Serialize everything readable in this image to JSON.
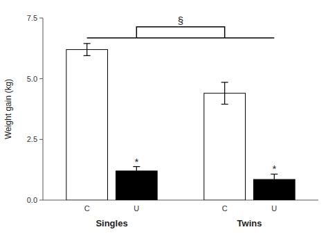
{
  "chart_data": {
    "type": "bar",
    "categories": [
      "Singles",
      "Twins"
    ],
    "series": [
      {
        "name": "C",
        "color": "white",
        "values": [
          6.2,
          4.4
        ],
        "errors": [
          0.25,
          0.45
        ]
      },
      {
        "name": "U",
        "color": "black",
        "values": [
          1.2,
          0.85
        ],
        "errors": [
          0.18,
          0.22
        ]
      }
    ],
    "ylabel": "Weight gain (kg)",
    "ylim": [
      0,
      7.5
    ],
    "yticks": [
      {
        "value": 0.0,
        "label": "0.0"
      },
      2.5,
      {
        "value": 5.0,
        "label": "5.0"
      },
      7.5
    ],
    "grid": false,
    "annotations": [
      {
        "text": "*",
        "category": "Singles",
        "series": "U"
      },
      {
        "text": "*",
        "category": "Twins",
        "series": "U"
      },
      {
        "from": [
          "Singles",
          "C"
        ],
        "to": [
          "Twins",
          "U"
        ]
      },
      {
        "text": "§",
        "from": [
          "Singles",
          "U"
        ],
        "to": [
          "Twins",
          "C"
        ]
      }
    ]
  }
}
